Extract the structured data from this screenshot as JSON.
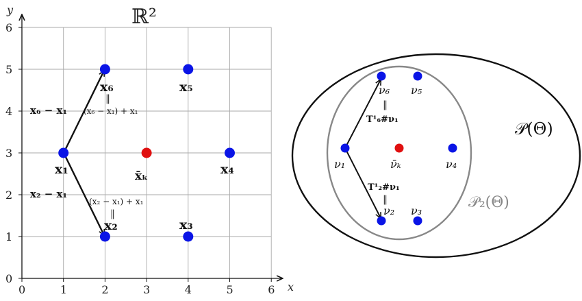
{
  "left_plot": {
    "title": "ℝ²",
    "x_axis_name": "x",
    "y_axis_name": "y",
    "x_ticks": [
      "0",
      "1",
      "2",
      "3",
      "4",
      "5",
      "6"
    ],
    "y_ticks": [
      "0",
      "1",
      "2",
      "3",
      "4",
      "5",
      "6"
    ],
    "points": [
      {
        "label": "x₁",
        "x": 1,
        "y": 3,
        "color": "#0a14e6"
      },
      {
        "label": "x₂",
        "x": 2,
        "y": 1,
        "color": "#0a14e6"
      },
      {
        "label": "x₃",
        "x": 4,
        "y": 1,
        "color": "#0a14e6"
      },
      {
        "label": "x₄",
        "x": 5,
        "y": 3,
        "color": "#0a14e6"
      },
      {
        "label": "x₅",
        "x": 4,
        "y": 5,
        "color": "#0a14e6"
      },
      {
        "label": "x₆",
        "x": 2,
        "y": 5,
        "color": "#0a14e6"
      }
    ],
    "barycenter": {
      "label": "x̄ₖ",
      "x": 3,
      "y": 3,
      "color": "#e01010"
    },
    "vector_labels": {
      "v6": "x₆ − x₁",
      "v2": "x₂ − x₁",
      "op6": "(x₆ − x₁) + x₁",
      "op2": "(x₂ − x₁) + x₁",
      "eq": "‖"
    }
  },
  "right_diagram": {
    "outer_set": "𝒫(Θ)",
    "inner_set": "𝒫₂(Θ)",
    "measures": [
      {
        "label": "ν₁"
      },
      {
        "label": "ν₂"
      },
      {
        "label": "ν₃"
      },
      {
        "label": "ν₄"
      },
      {
        "label": "ν₅"
      },
      {
        "label": "ν₆"
      }
    ],
    "barycenter_label": "ν̄ₖ",
    "map6": "T¹₆#ν₁",
    "map2": "T¹₂#ν₁",
    "eq": "‖",
    "colors": {
      "measure": "#0a14e6",
      "barycenter": "#e01010",
      "inner_ellipse": "#888888"
    }
  }
}
